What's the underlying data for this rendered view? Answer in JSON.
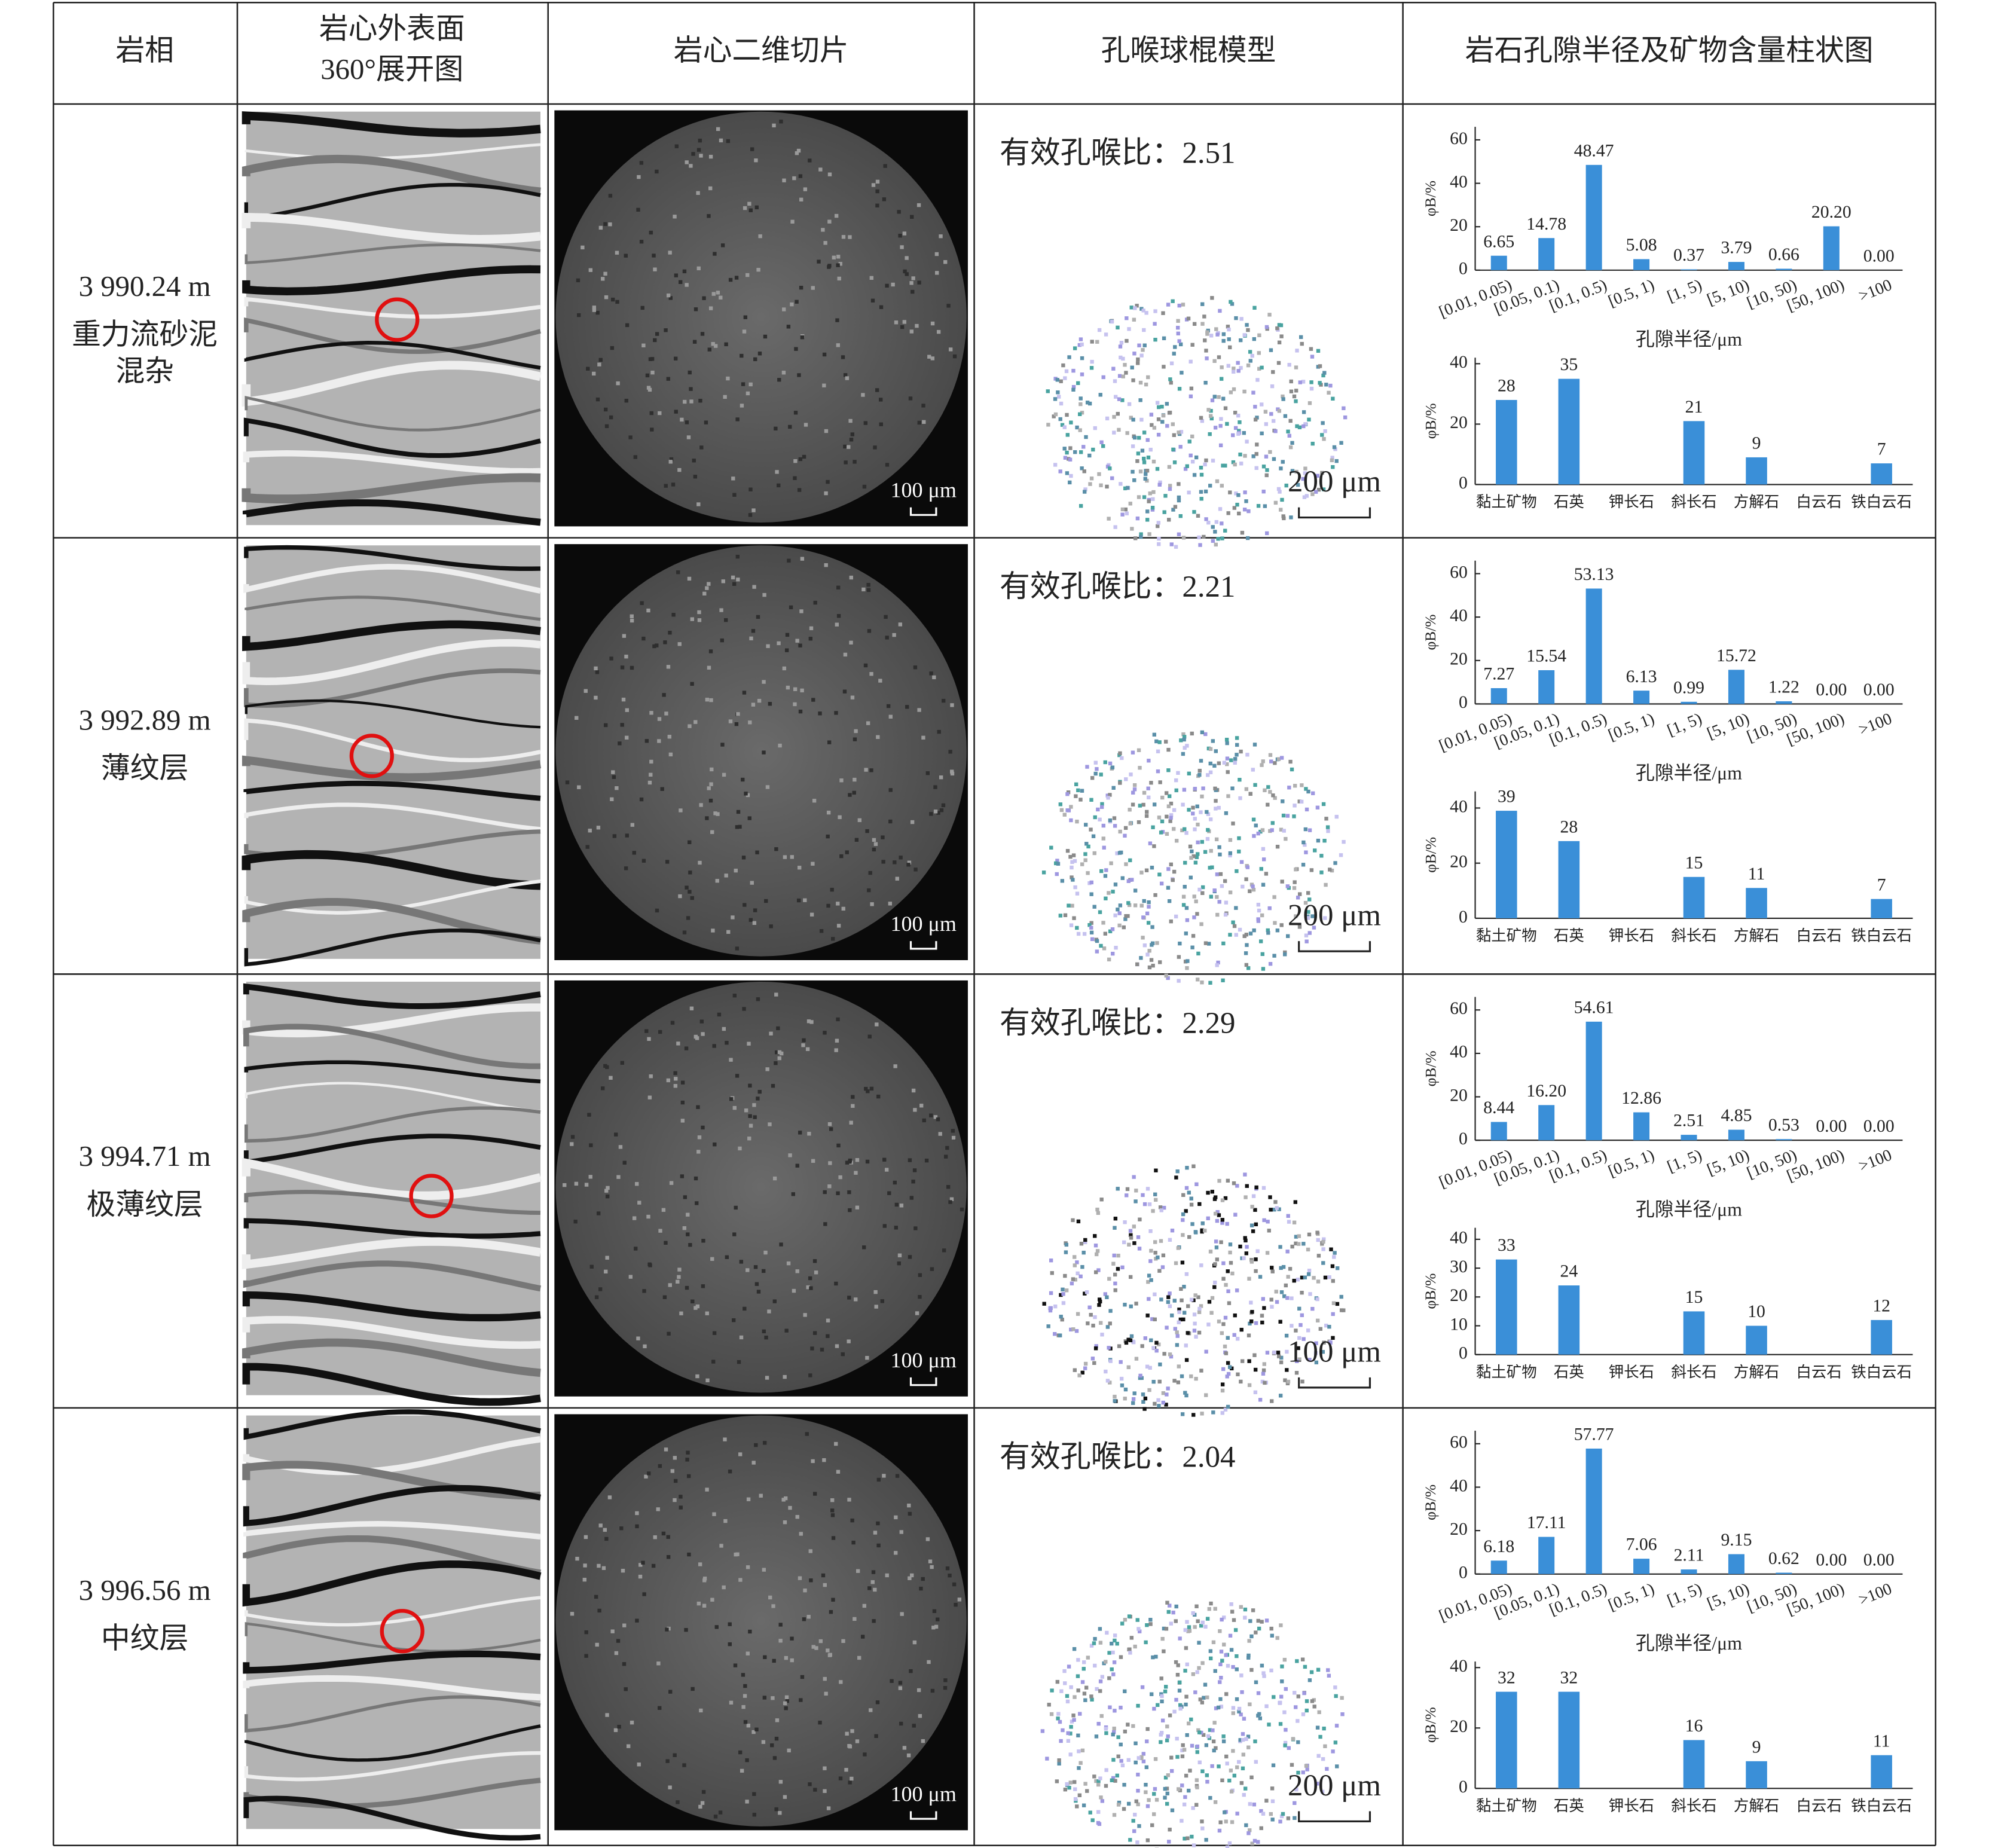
{
  "table": {
    "header": [
      "岩相",
      [
        "岩心外表面",
        "360°展开图"
      ],
      "岩心二维切片",
      "孔喉球棍模型",
      "岩石孔隙半径及矿物含量柱状图"
    ],
    "rows": [
      {
        "depth": "3 990.24 m",
        "facies": [
          "重力流砂泥",
          "混杂"
        ],
        "slice_scale": "100 μm",
        "model_ratio": "有效孔喉比：2.51",
        "model_scale": "200 μm"
      },
      {
        "depth": "3 992.89 m",
        "facies": [
          "薄纹层"
        ],
        "slice_scale": "100 μm",
        "model_ratio": "有效孔喉比：2.21",
        "model_scale": "200 μm"
      },
      {
        "depth": "3 994.71 m",
        "facies": [
          "极薄纹层"
        ],
        "slice_scale": "100 μm",
        "model_ratio": "有效孔喉比：2.29",
        "model_scale": "100 μm"
      },
      {
        "depth": "3 996.56 m",
        "facies": [
          "中纹层"
        ],
        "slice_scale": "100 μm",
        "model_ratio": "有效孔喉比：2.04",
        "model_scale": "200 μm"
      }
    ]
  },
  "chart_data": [
    {
      "type": "bar",
      "categories": [
        "[0.01, 0.05)",
        "[0.05, 0.1)",
        "[0.1, 0.5)",
        "[0.5, 1)",
        "[1, 5)",
        "[5, 10)",
        "[10, 50)",
        "[50, 100)",
        ">100"
      ],
      "values": [
        6.65,
        14.78,
        48.47,
        5.08,
        0.37,
        3.79,
        0.66,
        20.2,
        0
      ],
      "value_labels": [
        "6.65",
        "14.78",
        "48.47",
        "5.08",
        "0.37",
        "3.79",
        "0.66",
        "20.20",
        "0.00"
      ],
      "color": "#3a8fd8",
      "ylim": [
        0,
        66
      ],
      "yticks": [
        0,
        20,
        40,
        60
      ],
      "ylabel": "φB/%",
      "xlabel": "孔隙半径/μm"
    },
    {
      "type": "bar",
      "categories": [
        "黏土矿物",
        "石英",
        "钾长石",
        "斜长石",
        "方解石",
        "白云石",
        "铁白云石"
      ],
      "values": [
        28,
        35,
        null,
        21,
        9,
        null,
        7
      ],
      "color": "#3a8fd8",
      "ylim": [
        0,
        42
      ],
      "yticks": [
        0,
        20,
        40
      ],
      "ylabel": "φB/%"
    },
    {
      "type": "bar",
      "categories": [
        "[0.01, 0.05)",
        "[0.05, 0.1)",
        "[0.1, 0.5)",
        "[0.5, 1)",
        "[1, 5)",
        "[5, 10)",
        "[10, 50)",
        "[50, 100)",
        ">100"
      ],
      "values": [
        7.27,
        15.54,
        53.13,
        6.13,
        0.99,
        15.72,
        1.22,
        0,
        0
      ],
      "value_labels": [
        "7.27",
        "15.54",
        "53.13",
        "6.13",
        "0.99",
        "15.72",
        "1.22",
        "0.00",
        "0.00"
      ],
      "color": "#3a8fd8",
      "ylim": [
        0,
        66
      ],
      "yticks": [
        0,
        20,
        40,
        60
      ],
      "ylabel": "φB/%",
      "xlabel": "孔隙半径/μm"
    },
    {
      "type": "bar",
      "categories": [
        "黏土矿物",
        "石英",
        "钾长石",
        "斜长石",
        "方解石",
        "白云石",
        "铁白云石"
      ],
      "values": [
        39,
        28,
        null,
        15,
        11,
        null,
        7
      ],
      "color": "#3a8fd8",
      "ylim": [
        0,
        46
      ],
      "yticks": [
        0,
        20,
        40
      ],
      "ylabel": "φB/%"
    },
    {
      "type": "bar",
      "categories": [
        "[0.01, 0.05)",
        "[0.05, 0.1)",
        "[0.1, 0.5)",
        "[0.5, 1)",
        "[1, 5)",
        "[5, 10)",
        "[10, 50)",
        "[50, 100)",
        ">100"
      ],
      "values": [
        8.44,
        16.2,
        54.61,
        12.86,
        2.51,
        4.85,
        0.53,
        0,
        0
      ],
      "value_labels": [
        "8.44",
        "16.20",
        "54.61",
        "12.86",
        "2.51",
        "4.85",
        "0.53",
        "0.00",
        "0.00"
      ],
      "color": "#3a8fd8",
      "ylim": [
        0,
        66
      ],
      "yticks": [
        0,
        20,
        40,
        60
      ],
      "ylabel": "φB/%",
      "xlabel": "孔隙半径/μm"
    },
    {
      "type": "bar",
      "categories": [
        "黏土矿物",
        "石英",
        "钾长石",
        "斜长石",
        "方解石",
        "白云石",
        "铁白云石"
      ],
      "values": [
        33,
        24,
        null,
        15,
        10,
        null,
        12
      ],
      "color": "#3a8fd8",
      "ylim": [
        0,
        44
      ],
      "yticks": [
        0,
        10,
        20,
        30,
        40
      ],
      "ylabel": "φB/%"
    },
    {
      "type": "bar",
      "categories": [
        "[0.01, 0.05)",
        "[0.05, 0.1)",
        "[0.1, 0.5)",
        "[0.5, 1)",
        "[1, 5)",
        "[5, 10)",
        "[10, 50)",
        "[50, 100)",
        ">100"
      ],
      "values": [
        6.18,
        17.11,
        57.77,
        7.06,
        2.11,
        9.15,
        0.62,
        0,
        0
      ],
      "value_labels": [
        "6.18",
        "17.11",
        "57.77",
        "7.06",
        "2.11",
        "9.15",
        "0.62",
        "0.00",
        "0.00"
      ],
      "color": "#3a8fd8",
      "ylim": [
        0,
        66
      ],
      "yticks": [
        0,
        20,
        40,
        60
      ],
      "ylabel": "φB/%",
      "xlabel": "孔隙半径/μm"
    },
    {
      "type": "bar",
      "categories": [
        "黏土矿物",
        "石英",
        "钾长石",
        "斜长石",
        "方解石",
        "白云石",
        "铁白云石"
      ],
      "values": [
        32,
        32,
        null,
        16,
        9,
        null,
        11
      ],
      "color": "#3a8fd8",
      "ylim": [
        0,
        42
      ],
      "yticks": [
        0,
        20,
        40
      ],
      "ylabel": "φB/%"
    }
  ]
}
